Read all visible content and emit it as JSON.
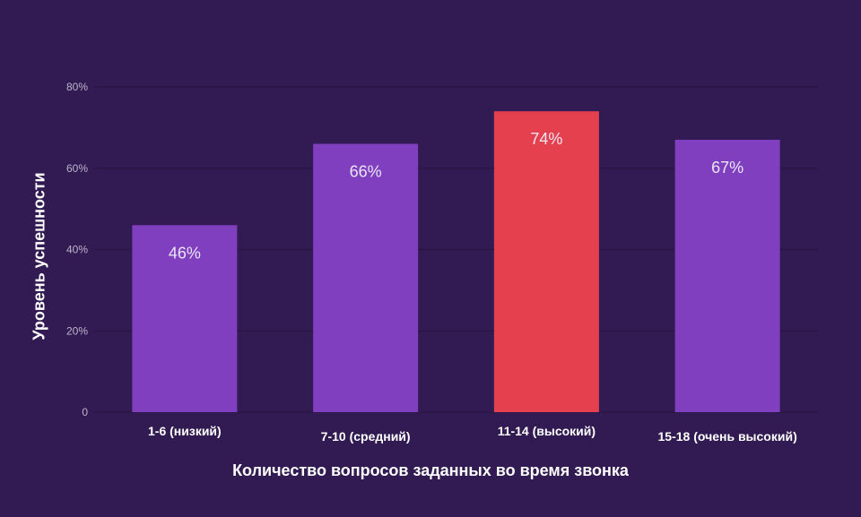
{
  "chart_data": {
    "type": "bar",
    "categories": [
      "1-6 (низкий)",
      "7-10 (средний)",
      "11-14 (высокий)",
      "15-18 (очень высокий)"
    ],
    "values": [
      46,
      66,
      74,
      67
    ],
    "value_labels": [
      "46%",
      "66%",
      "74%",
      "67%"
    ],
    "xlabel": "Количество вопросов заданных во время звонка",
    "ylabel": "Уровень успешности",
    "ylim": [
      0,
      80
    ],
    "yticks": [
      0,
      20,
      40,
      60,
      80
    ],
    "ytick_labels": [
      "0",
      "20%",
      "40%",
      "60%",
      "80%"
    ],
    "grid": true,
    "legend": "none",
    "highlight_index": 2
  },
  "colors": {
    "background": "#311b52",
    "bar": "#7f3fbf",
    "bar_highlight": "#e5404e",
    "grid": "#2a1646",
    "tick_text": "#bdb4cc",
    "value_text": "#ece6f5",
    "axis_text": "#ffffff"
  }
}
